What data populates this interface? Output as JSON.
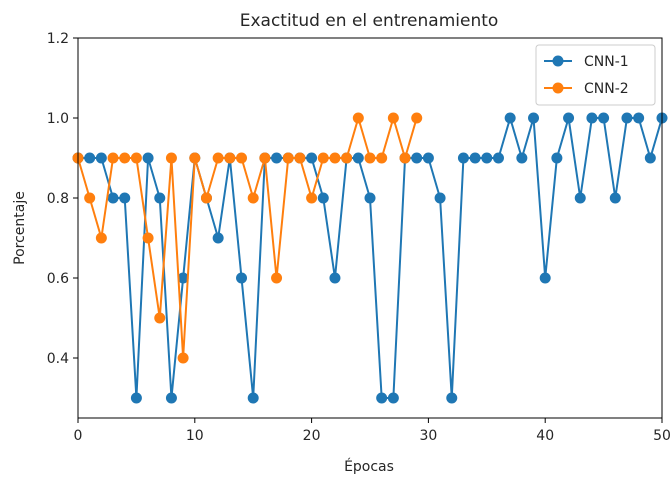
{
  "chart_data": {
    "type": "line",
    "title": "Exactitud en el entrenamiento",
    "xlabel": "Épocas",
    "ylabel": "Porcentaje",
    "xlim": [
      0,
      50
    ],
    "ylim": [
      0.25,
      1.2
    ],
    "xticks": [
      0,
      10,
      20,
      30,
      40,
      50
    ],
    "yticks": [
      0.4,
      0.6,
      0.8,
      1.0,
      1.2
    ],
    "xtick_labels": [
      "0",
      "10",
      "20",
      "30",
      "40",
      "50"
    ],
    "ytick_labels": [
      "0.4",
      "0.6",
      "0.8",
      "1.0",
      "1.2"
    ],
    "grid": false,
    "legend_position": "top-right",
    "series": [
      {
        "name": "CNN-1",
        "color": "#1f77b4",
        "x": [
          0,
          1,
          2,
          3,
          4,
          5,
          6,
          7,
          8,
          9,
          10,
          11,
          12,
          13,
          14,
          15,
          16,
          17,
          18,
          19,
          20,
          21,
          22,
          23,
          24,
          25,
          26,
          27,
          28,
          29,
          30,
          31,
          32,
          33,
          34,
          35,
          36,
          37,
          38,
          39,
          40,
          41,
          42,
          43,
          44,
          45,
          46,
          47,
          48,
          49,
          50
        ],
        "values": [
          0.9,
          0.9,
          0.9,
          0.8,
          0.8,
          0.3,
          0.9,
          0.8,
          0.3,
          0.6,
          0.9,
          0.8,
          0.7,
          0.9,
          0.6,
          0.3,
          0.9,
          0.9,
          0.9,
          0.9,
          0.9,
          0.8,
          0.6,
          0.9,
          0.9,
          0.8,
          0.3,
          0.3,
          0.9,
          0.9,
          0.9,
          0.8,
          0.3,
          0.9,
          0.9,
          0.9,
          0.9,
          1.0,
          0.9,
          1.0,
          0.6,
          0.9,
          1.0,
          0.8,
          1.0,
          1.0,
          0.8,
          1.0,
          1.0,
          0.9,
          1.0
        ]
      },
      {
        "name": "CNN-2",
        "color": "#ff7f0e",
        "x": [
          0,
          1,
          2,
          3,
          4,
          5,
          6,
          7,
          8,
          9,
          10,
          11,
          12,
          13,
          14,
          15,
          16,
          17,
          18,
          19,
          20,
          21,
          22,
          23,
          24,
          25,
          26,
          27,
          28,
          29
        ],
        "values": [
          0.9,
          0.8,
          0.7,
          0.9,
          0.9,
          0.9,
          0.7,
          0.5,
          0.9,
          0.4,
          0.9,
          0.8,
          0.9,
          0.9,
          0.9,
          0.8,
          0.9,
          0.6,
          0.9,
          0.9,
          0.8,
          0.9,
          0.9,
          0.9,
          1.0,
          0.9,
          0.9,
          1.0,
          0.9,
          1.0
        ]
      }
    ]
  }
}
